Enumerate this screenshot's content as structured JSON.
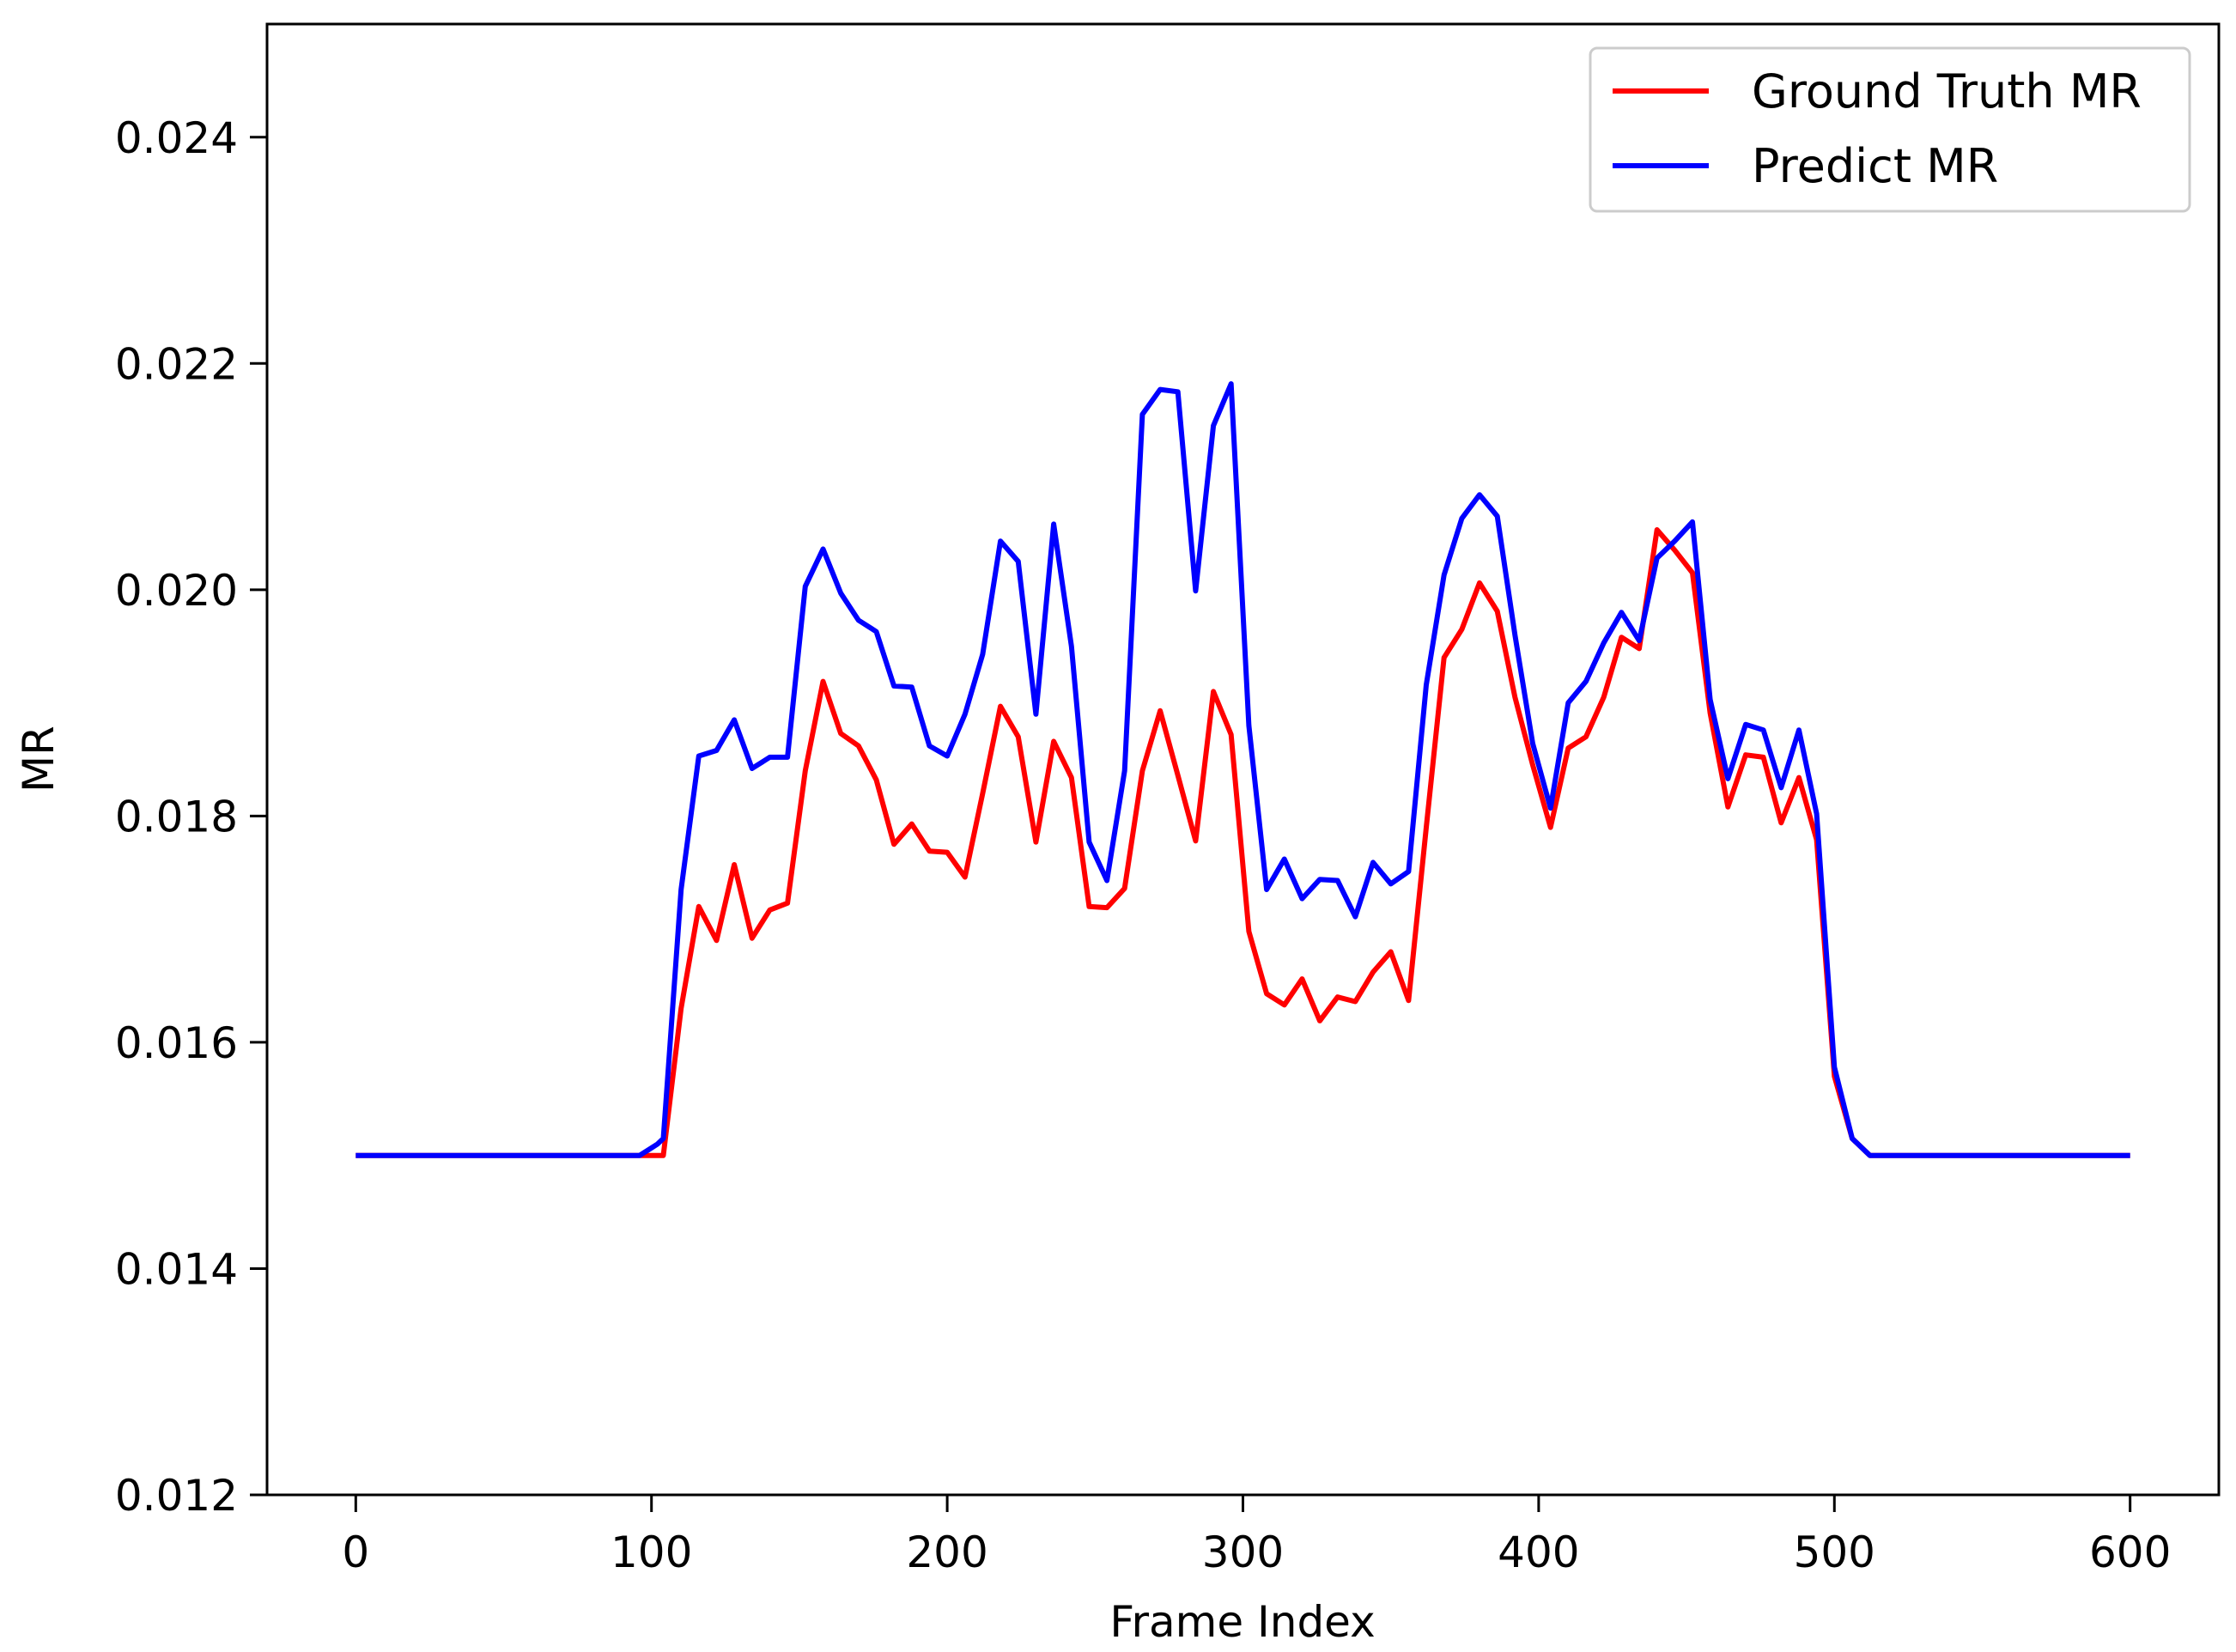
{
  "chart_data": {
    "type": "line",
    "title": "",
    "xlabel": "Frame Index",
    "ylabel": "MR",
    "xlim": [
      -30,
      630
    ],
    "ylim": [
      0.012,
      0.025
    ],
    "x_ticks": [
      0,
      100,
      200,
      300,
      400,
      500,
      600
    ],
    "x_tick_labels": [
      "0",
      "100",
      "200",
      "300",
      "400",
      "500",
      "600"
    ],
    "y_ticks": [
      0.012,
      0.014,
      0.016,
      0.018,
      0.02,
      0.022,
      0.024
    ],
    "y_tick_labels": [
      "0.012",
      "0.014",
      "0.016",
      "0.018",
      "0.020",
      "0.022",
      "0.024"
    ],
    "grid": false,
    "legend_position": "top-right",
    "series": [
      {
        "name": "Ground Truth MR",
        "color": "#ff0000",
        "x": [
          0,
          6,
          12,
          18,
          24,
          30,
          36,
          42,
          48,
          54,
          60,
          66,
          72,
          78,
          84,
          90,
          96,
          102,
          104,
          110,
          116,
          122,
          128,
          134,
          140,
          146,
          152,
          158,
          164,
          170,
          176,
          182,
          188,
          194,
          200,
          206,
          212,
          218,
          224,
          230,
          236,
          242,
          248,
          254,
          260,
          266,
          272,
          278,
          284,
          290,
          296,
          302,
          308,
          314,
          320,
          326,
          332,
          338,
          344,
          350,
          356,
          362,
          368,
          374,
          380,
          386,
          392,
          398,
          404,
          410,
          416,
          422,
          428,
          434,
          440,
          446,
          452,
          458,
          464,
          470,
          476,
          482,
          488,
          494,
          500,
          506,
          512,
          518,
          524,
          530,
          536,
          542,
          548,
          554,
          560,
          566,
          572,
          578,
          584,
          590,
          596,
          600
        ],
        "y": [
          0.015,
          0.015,
          0.015,
          0.015,
          0.015,
          0.015,
          0.015,
          0.015,
          0.015,
          0.015,
          0.015,
          0.015,
          0.015,
          0.015,
          0.015,
          0.015,
          0.015,
          0.015,
          0.015,
          0.0163,
          0.0172,
          0.0169,
          0.01757,
          0.01692,
          0.01717,
          0.01723,
          0.0184,
          0.01919,
          0.01873,
          0.01862,
          0.01832,
          0.01775,
          0.01793,
          0.01769,
          0.01768,
          0.01746,
          0.0182,
          0.01897,
          0.0187,
          0.01777,
          0.01866,
          0.01834,
          0.0172,
          0.01719,
          0.01736,
          0.0184,
          0.01893,
          0.01836,
          0.01778,
          0.0191,
          0.01872,
          0.01698,
          0.01643,
          0.01633,
          0.01656,
          0.01619,
          0.0164,
          0.01636,
          0.01662,
          0.0168,
          0.01637,
          0.0179,
          0.0194,
          0.01965,
          0.02006,
          0.01981,
          0.01905,
          0.01845,
          0.0179,
          0.0186,
          0.0187,
          0.01905,
          0.01958,
          0.01948,
          0.02053,
          0.02035,
          0.02015,
          0.01891,
          0.01808,
          0.01854,
          0.01852,
          0.01794,
          0.01834,
          0.01779,
          0.0157,
          0.01515,
          0.015,
          0.015,
          0.015,
          0.015,
          0.015,
          0.015,
          0.015,
          0.015,
          0.015,
          0.015,
          0.015,
          0.015,
          0.015,
          0.015,
          0.015,
          0.015
        ]
      },
      {
        "name": "Predict MR",
        "color": "#0000ff",
        "x": [
          0,
          6,
          12,
          18,
          24,
          30,
          36,
          42,
          48,
          54,
          60,
          66,
          72,
          78,
          84,
          90,
          96,
          102,
          104,
          110,
          116,
          122,
          128,
          134,
          140,
          146,
          152,
          158,
          164,
          170,
          176,
          182,
          188,
          194,
          200,
          206,
          212,
          218,
          224,
          230,
          236,
          242,
          248,
          254,
          260,
          266,
          272,
          278,
          284,
          290,
          296,
          302,
          308,
          314,
          320,
          326,
          332,
          338,
          344,
          350,
          356,
          362,
          368,
          374,
          380,
          386,
          392,
          398,
          404,
          410,
          416,
          422,
          428,
          434,
          440,
          446,
          452,
          458,
          464,
          470,
          476,
          482,
          488,
          494,
          500,
          506,
          512,
          518,
          524,
          530,
          536,
          542,
          548,
          554,
          560,
          566,
          572,
          578,
          584,
          590,
          596,
          600
        ],
        "y": [
          0.015,
          0.015,
          0.015,
          0.015,
          0.015,
          0.015,
          0.015,
          0.015,
          0.015,
          0.015,
          0.015,
          0.015,
          0.015,
          0.015,
          0.015,
          0.015,
          0.015,
          0.0151,
          0.01515,
          0.01735,
          0.01853,
          0.01858,
          0.01885,
          0.01842,
          0.01852,
          0.01852,
          0.02003,
          0.02036,
          0.01997,
          0.01973,
          0.01963,
          0.01915,
          0.01914,
          0.01862,
          0.01853,
          0.0189,
          0.01943,
          0.02043,
          0.02025,
          0.0189,
          0.02058,
          0.0195,
          0.01777,
          0.01743,
          0.0184,
          0.02155,
          0.02177,
          0.02175,
          0.01999,
          0.02145,
          0.02182,
          0.0188,
          0.01735,
          0.01762,
          0.01727,
          0.01744,
          0.01743,
          0.01711,
          0.01759,
          0.0174,
          0.01751,
          0.01916,
          0.02013,
          0.02063,
          0.02084,
          0.02065,
          0.0196,
          0.01864,
          0.01807,
          0.019,
          0.01919,
          0.01953,
          0.0198,
          0.01955,
          0.02028,
          0.02043,
          0.0206,
          0.01903,
          0.01833,
          0.01881,
          0.01876,
          0.01825,
          0.01876,
          0.01802,
          0.01578,
          0.01515,
          0.015,
          0.015,
          0.015,
          0.015,
          0.015,
          0.015,
          0.015,
          0.015,
          0.015,
          0.015,
          0.015,
          0.015,
          0.015,
          0.015,
          0.015,
          0.015
        ]
      }
    ]
  }
}
